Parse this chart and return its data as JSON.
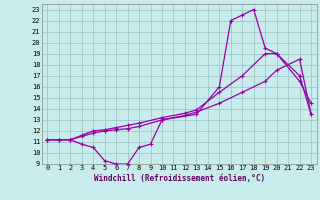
{
  "xlabel": "Windchill (Refroidissement éolien,°C)",
  "bg_color": "#c8ecec",
  "grid_color": "#a0c8c8",
  "line_color": "#9900aa",
  "xlim": [
    -0.5,
    23.5
  ],
  "ylim": [
    9,
    23.5
  ],
  "xticks": [
    0,
    1,
    2,
    3,
    4,
    5,
    6,
    7,
    8,
    9,
    10,
    11,
    12,
    13,
    14,
    15,
    16,
    17,
    18,
    19,
    20,
    21,
    22,
    23
  ],
  "yticks": [
    9,
    10,
    11,
    12,
    13,
    14,
    15,
    16,
    17,
    18,
    19,
    20,
    21,
    22,
    23
  ],
  "line1_x": [
    0,
    1,
    2,
    3,
    4,
    5,
    6,
    7,
    8,
    9,
    10,
    13,
    15,
    16,
    17,
    18,
    19,
    20,
    22,
    23
  ],
  "line1_y": [
    11.2,
    11.2,
    11.2,
    10.8,
    10.5,
    9.3,
    9.0,
    9.0,
    10.5,
    10.8,
    13.0,
    13.5,
    16.0,
    22.0,
    22.5,
    23.0,
    19.5,
    19.0,
    16.5,
    14.5
  ],
  "line2_x": [
    0,
    1,
    2,
    3,
    4,
    5,
    6,
    7,
    8,
    10,
    12,
    13,
    15,
    17,
    19,
    20,
    22,
    23
  ],
  "line2_y": [
    11.2,
    11.2,
    11.2,
    11.5,
    11.8,
    12.0,
    12.1,
    12.2,
    12.4,
    13.0,
    13.4,
    13.7,
    14.5,
    15.5,
    16.5,
    17.5,
    18.5,
    13.5
  ],
  "line3_x": [
    0,
    1,
    2,
    3,
    4,
    5,
    6,
    7,
    8,
    10,
    12,
    13,
    15,
    17,
    19,
    20,
    22,
    23
  ],
  "line3_y": [
    11.2,
    11.2,
    11.2,
    11.6,
    12.0,
    12.1,
    12.3,
    12.5,
    12.7,
    13.2,
    13.6,
    13.9,
    15.5,
    17.0,
    19.0,
    19.0,
    17.0,
    13.5
  ],
  "tick_fontsize": 5,
  "xlabel_fontsize": 5.5
}
